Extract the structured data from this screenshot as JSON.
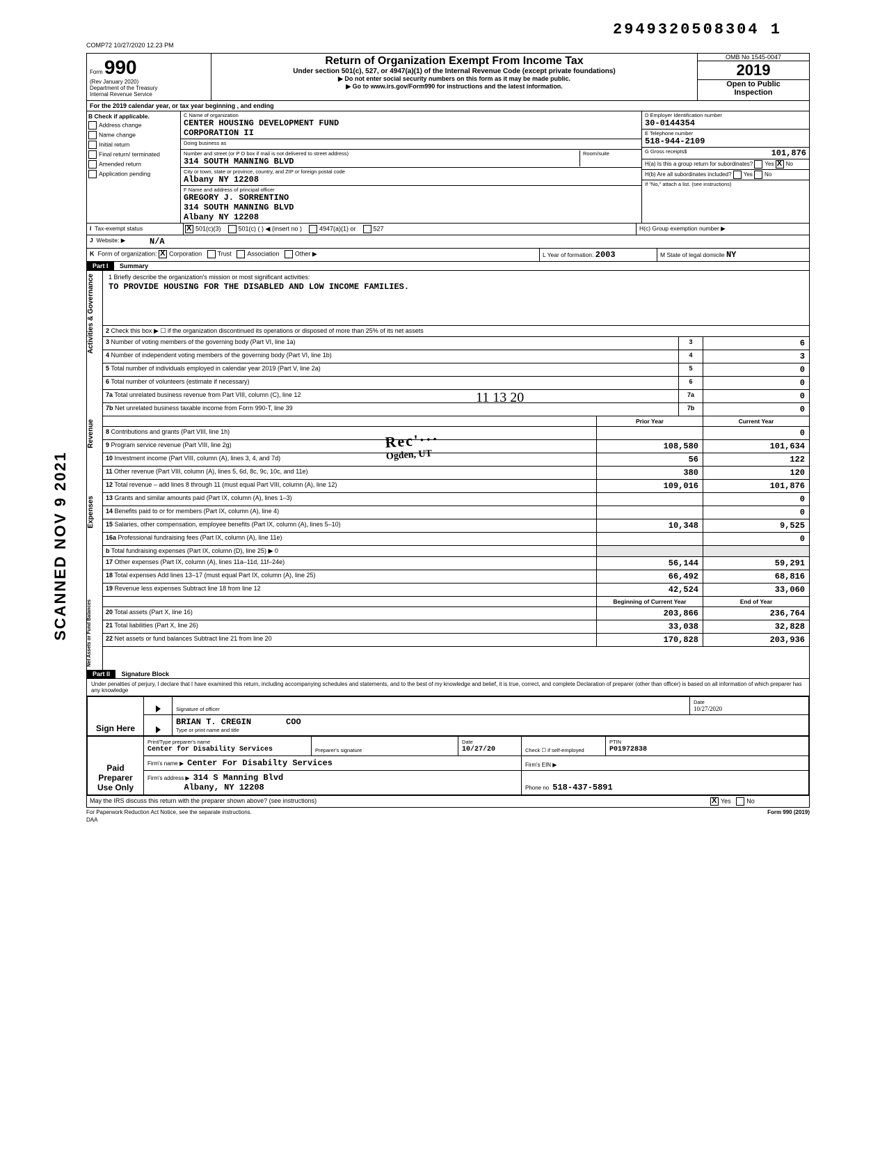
{
  "doc_stamp": "2949320508304  1",
  "timestamp_meta": "COMP72 10/27/2020 12.23 PM",
  "header": {
    "form_prefix": "Form",
    "form_number": "990",
    "rev": "(Rev January 2020)",
    "dept": "Department of the Treasury",
    "irs": "Internal Revenue Service",
    "title": "Return of Organization Exempt From Income Tax",
    "subtitle": "Under section 501(c), 527, or 4947(a)(1) of the Internal Revenue Code (except private foundations)",
    "warn1": "▶ Do not enter social security numbers on this form as it may be made public.",
    "warn2": "▶ Go to www.irs.gov/Form990 for instructions and the latest information.",
    "omb": "OMB No 1545-0047",
    "year": "2019",
    "open": "Open to Public",
    "insp": "Inspection"
  },
  "rowA": "For the 2019 calendar year, or tax year beginning                    , and ending",
  "B": {
    "label": "Check if applicable.",
    "items": [
      "Address change",
      "Name change",
      "Initial return",
      "Final return/ terminated",
      "Amended return",
      "Application pending"
    ]
  },
  "C": {
    "name_lbl": "C Name of organization",
    "name1": "CENTER HOUSING DEVELOPMENT FUND",
    "name2": "CORPORATION II",
    "dba_lbl": "Doing business as",
    "street_lbl": "Number and street (or P O box if mail is not delivered to street address)",
    "street": "314 SOUTH MANNING BLVD",
    "room_lbl": "Room/suite",
    "city_lbl": "City or town, state or province, country, and ZIP or foreign postal code",
    "city": "Albany                         NY 12208",
    "F_lbl": "F Name and address of principal officer",
    "officer": "GREGORY J. SORRENTINO",
    "officer_addr1": "314 SOUTH MANNING BLVD",
    "officer_addr2": "Albany                         NY 12208"
  },
  "D": {
    "ein_lbl": "D Employer Identification number",
    "ein": "30-0144354",
    "tel_lbl": "E Telephone number",
    "tel": "518-944-2109",
    "gross_lbl": "G Gross receipts$",
    "gross": "101,876",
    "Ha": "H(a) Is this a group return for subordinates?",
    "Ha_yes": "Yes",
    "Ha_no": "No",
    "Ha_checked": "No",
    "Hb": "H(b) Are all subordinates included?",
    "Hb_yes": "Yes",
    "Hb_no": "No",
    "Hb_note": "If \"No,\" attach a list. (see instructions)",
    "Hc": "H(c) Group exemption number ▶"
  },
  "I": {
    "lbl": "Tax-exempt status",
    "opts": [
      "501(c)(3)",
      "501(c) (    ) ◀ (insert no )",
      "4947(a)(1) or",
      "527"
    ],
    "checked": "501(c)(3)"
  },
  "J": {
    "lbl": "Website: ▶",
    "val": "N/A"
  },
  "K": {
    "lbl": "Form of organization:",
    "opts": [
      "Corporation",
      "Trust",
      "Association",
      "Other ▶"
    ],
    "checked": "Corporation"
  },
  "L": {
    "lbl": "L Year of formation.",
    "val": "2003"
  },
  "M": {
    "lbl": "M State of legal domicile",
    "val": "NY"
  },
  "PartI": {
    "hdr": "Part I",
    "title": "Summary"
  },
  "mission": {
    "lbl": "1 Briefly describe the organization's mission or most significant activities:",
    "text": "TO PROVIDE HOUSING FOR THE DISABLED AND LOW INCOME FAMILIES."
  },
  "gov_lines": [
    {
      "n": "2",
      "desc": "Check this box ▶ ☐  if the organization discontinued its operations or disposed of more than 25% of its net assets",
      "box": "",
      "val": ""
    },
    {
      "n": "3",
      "desc": "Number of voting members of the governing body (Part VI, line 1a)",
      "box": "3",
      "val": "6"
    },
    {
      "n": "4",
      "desc": "Number of independent voting members of the governing body (Part VI, line 1b)",
      "box": "4",
      "val": "3"
    },
    {
      "n": "5",
      "desc": "Total number of individuals employed in calendar year 2019 (Part V, line 2a)",
      "box": "5",
      "val": "0"
    },
    {
      "n": "6",
      "desc": "Total number of volunteers (estimate if necessary)",
      "box": "6",
      "val": "0"
    },
    {
      "n": "7a",
      "desc": "Total unrelated business revenue from Part VIII, column (C), line 12",
      "box": "7a",
      "val": "0"
    },
    {
      "n": "7b",
      "desc": "Net unrelated business taxable income from Form 990-T, line 39",
      "box": "7b",
      "val": "0"
    }
  ],
  "col_hdr": {
    "py": "Prior Year",
    "cy": "Current Year"
  },
  "rev_lines": [
    {
      "n": "8",
      "desc": "Contributions and grants (Part VIII, line 1h)",
      "py": "",
      "cy": "0"
    },
    {
      "n": "9",
      "desc": "Program service revenue (Part VIII, line 2g)",
      "py": "108,580",
      "cy": "101,634"
    },
    {
      "n": "10",
      "desc": "Investment income (Part VIII, column (A), lines 3, 4, and 7d)",
      "py": "56",
      "cy": "122"
    },
    {
      "n": "11",
      "desc": "Other revenue (Part VIII, column (A), lines 5, 6d, 8c, 9c, 10c, and 11e)",
      "py": "380",
      "cy": "120"
    },
    {
      "n": "12",
      "desc": "Total revenue – add lines 8 through 11 (must equal Part VIII, column (A), line 12)",
      "py": "109,016",
      "cy": "101,876"
    }
  ],
  "exp_lines": [
    {
      "n": "13",
      "desc": "Grants and similar amounts paid (Part IX, column (A), lines 1–3)",
      "py": "",
      "cy": "0"
    },
    {
      "n": "14",
      "desc": "Benefits paid to or for members (Part IX, column (A), line 4)",
      "py": "",
      "cy": "0"
    },
    {
      "n": "15",
      "desc": "Salaries, other compensation, employee benefits (Part IX, column (A), lines 5–10)",
      "py": "10,348",
      "cy": "9,525"
    },
    {
      "n": "16a",
      "desc": "Professional fundraising fees (Part IX, column (A), line 11e)",
      "py": "",
      "cy": "0"
    },
    {
      "n": "b",
      "desc": "Total fundraising expenses (Part IX, column (D), line 25) ▶                    0",
      "py": "",
      "cy": "",
      "shade": true
    },
    {
      "n": "17",
      "desc": "Other expenses (Part IX, column (A), lines 11a–11d, 11f–24e)",
      "py": "56,144",
      "cy": "59,291"
    },
    {
      "n": "18",
      "desc": "Total expenses  Add lines 13–17 (must equal Part IX, column (A), line 25)",
      "py": "66,492",
      "cy": "68,816"
    },
    {
      "n": "19",
      "desc": "Revenue less expenses  Subtract line 18 from line 12",
      "py": "42,524",
      "cy": "33,060"
    }
  ],
  "na_hdr": {
    "py": "Beginning of Current Year",
    "cy": "End of Year"
  },
  "na_lines": [
    {
      "n": "20",
      "desc": "Total assets (Part X, line 16)",
      "py": "203,866",
      "cy": "236,764"
    },
    {
      "n": "21",
      "desc": "Total liabilities (Part X, line 26)",
      "py": "33,038",
      "cy": "32,828"
    },
    {
      "n": "22",
      "desc": "Net assets or fund balances  Subtract line 21 from line 20",
      "py": "170,828",
      "cy": "203,936"
    }
  ],
  "PartII": {
    "hdr": "Part II",
    "title": "Signature Block"
  },
  "declare": "Under penalties of perjury, I declare that I have examined this return, including accompanying schedules and statements, and to the best of my knowledge and belief, it is true, correct, and complete  Declaration of preparer (other than officer) is based on all information of which preparer has any knowledge",
  "sign": {
    "sign_here": "Sign Here",
    "sig_lbl": "Signature of officer",
    "date_lbl": "Date",
    "date_hand": "10/27/2020",
    "name": "BRIAN T. CREGIN",
    "title": "COO",
    "name_lbl": "Type or print name and title"
  },
  "paid": {
    "hdr": "Paid Preparer Use Only",
    "prep_name_lbl": "Print/Type preparer's name",
    "prep_name": "Center for Disability Services",
    "prep_sig_lbl": "Preparer's signature",
    "date_lbl": "Date",
    "date": "10/27/20",
    "check_lbl": "Check ☐ if self-employed",
    "ptin_lbl": "PTIN",
    "ptin": "P01972838",
    "firm_lbl": "Firm's name  ▶",
    "firm": "Center For Disabilty Services",
    "ein_lbl": "Firm's EIN ▶",
    "addr_lbl": "Firm's address  ▶",
    "addr1": "314 S Manning Blvd",
    "addr2": "Albany, NY  12208",
    "phone_lbl": "Phone no",
    "phone": "518-437-5891"
  },
  "discuss": {
    "q": "May the IRS discuss this return with the preparer shown above? (see instructions)",
    "yes": "Yes",
    "no": "No",
    "checked": "Yes"
  },
  "footer": {
    "left": "For Paperwork Reduction Act Notice, see the separate instructions.",
    "mid": "DAA",
    "right": "Form 990 (2019)"
  },
  "stamp": {
    "l1": "Rec'···",
    "l2": "Ogden, UT"
  },
  "hand_marks": {
    "date": "11 13 20",
    "sig": "[signature]"
  },
  "scanned": "SCANNED  NOV 9 2021",
  "sides": {
    "gov": "Activities & Governance",
    "rev": "Revenue",
    "exp": "Expenses",
    "na": "Net Assets or Fund Balances"
  }
}
